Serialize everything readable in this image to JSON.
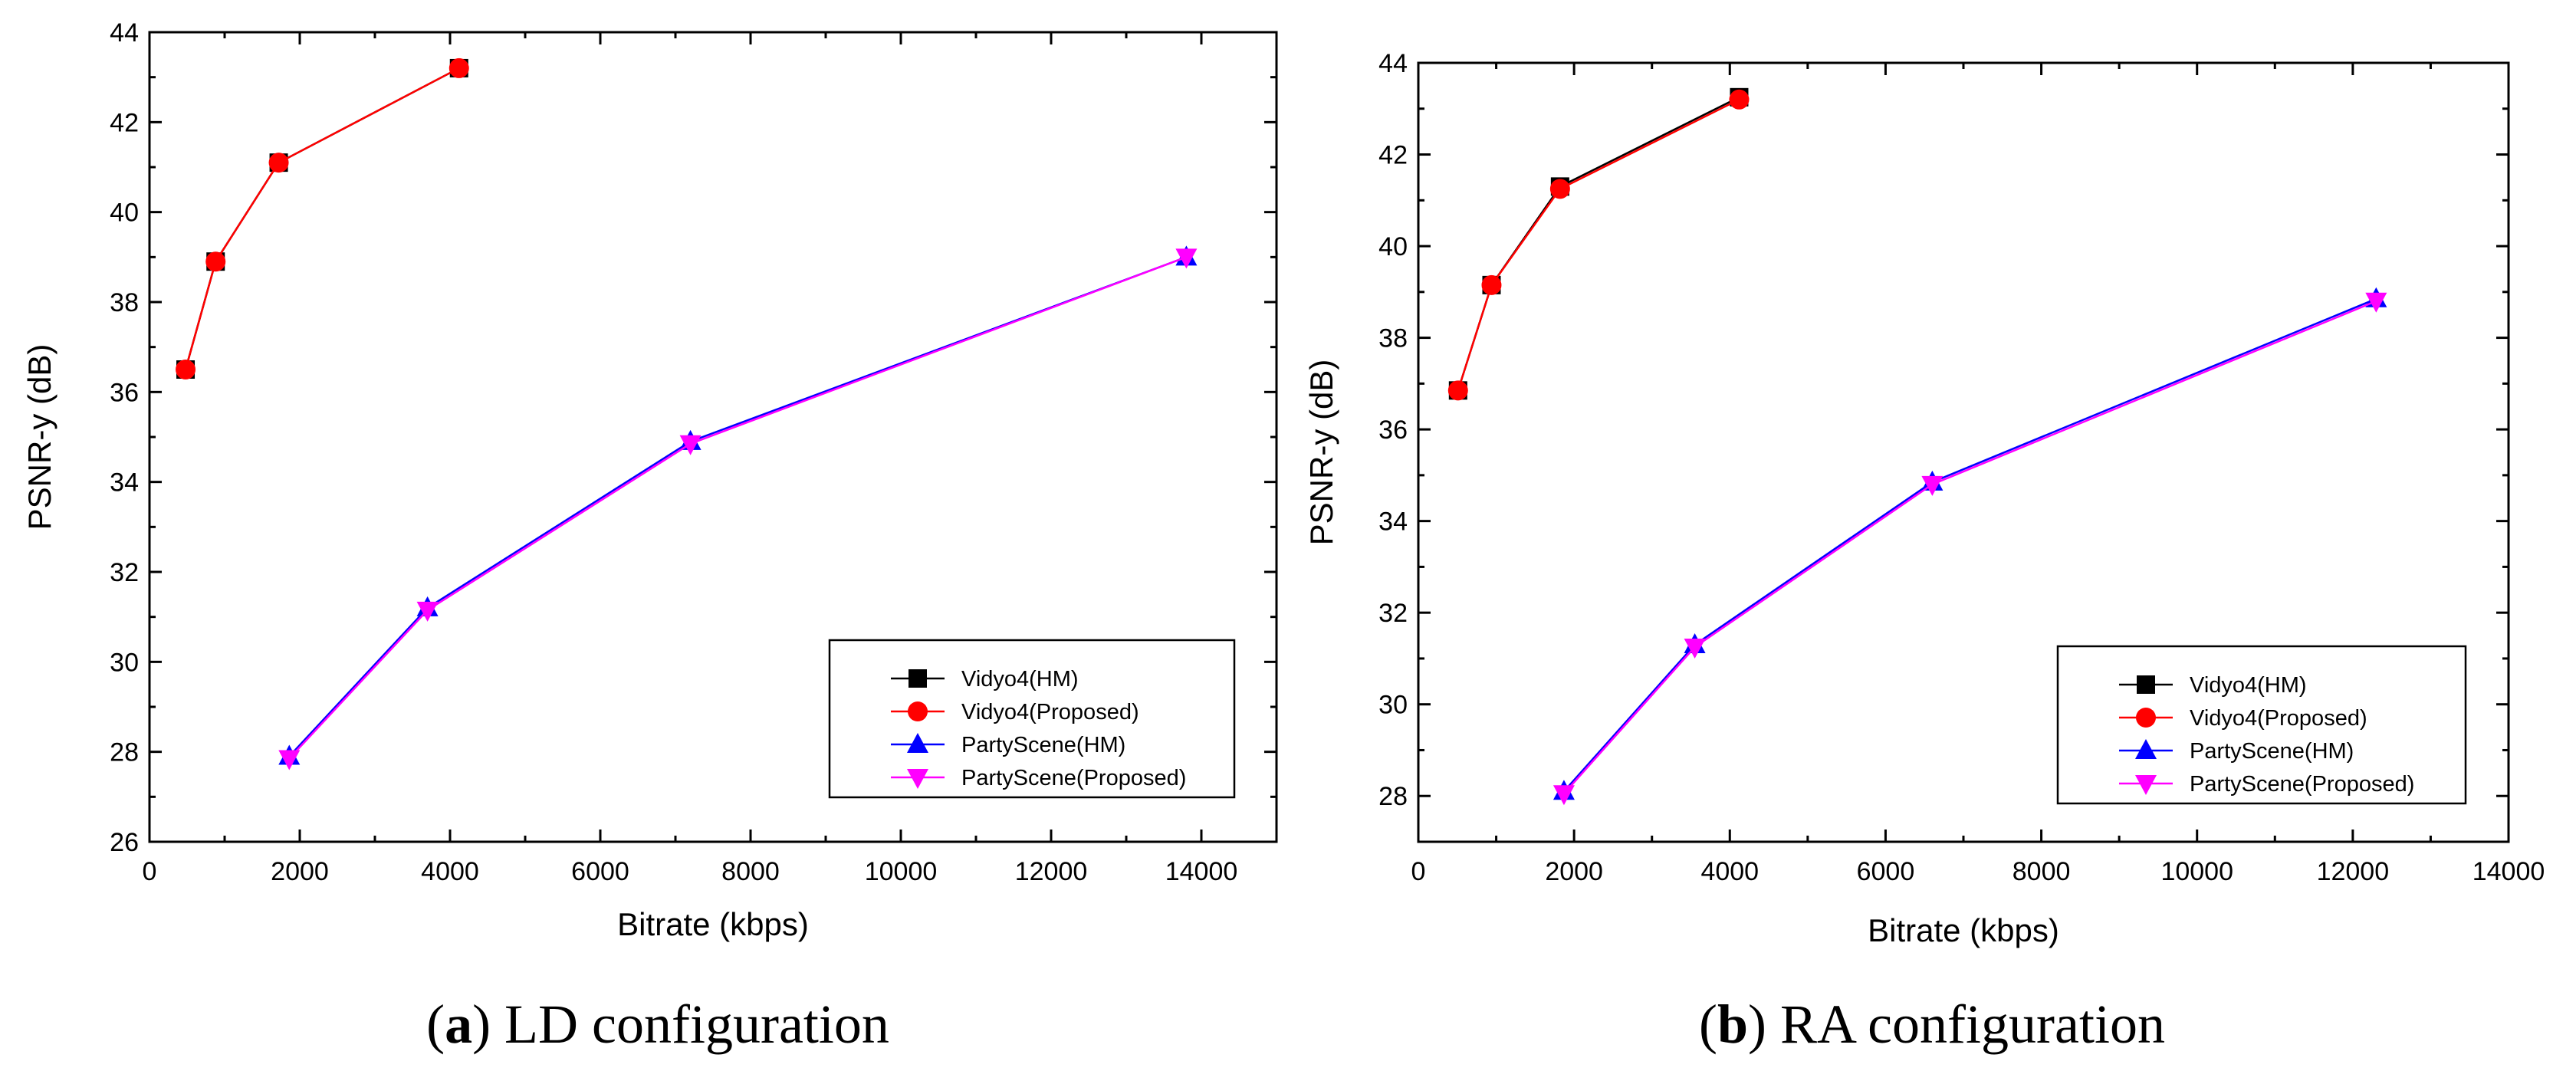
{
  "chart_data": [
    {
      "type": "line",
      "caption_letter": "a",
      "caption_text": "LD configuration",
      "xlabel": "Bitrate (kbps)",
      "ylabel": "PSNR-y (dB)",
      "xlim": [
        0,
        15000
      ],
      "ylim": [
        26,
        44
      ],
      "xticks": [
        0,
        2000,
        4000,
        6000,
        8000,
        10000,
        12000,
        14000
      ],
      "yticks": [
        26,
        28,
        30,
        32,
        34,
        36,
        38,
        40,
        42,
        44
      ],
      "legend_position": "bottom-right",
      "series": [
        {
          "name": "Vidyo4(HM)",
          "color": "#000000",
          "marker": "square",
          "x": [
            480,
            880,
            1720,
            4120
          ],
          "y": [
            36.5,
            38.9,
            41.1,
            43.2
          ]
        },
        {
          "name": "Vidyo4(Proposed)",
          "color": "#ff0000",
          "marker": "circle",
          "x": [
            480,
            880,
            1720,
            4120
          ],
          "y": [
            36.5,
            38.9,
            41.1,
            43.2
          ]
        },
        {
          "name": "PartyScene(HM)",
          "color": "#0000ff",
          "marker": "triangle-up",
          "x": [
            1860,
            3700,
            7200,
            13800
          ],
          "y": [
            27.9,
            31.2,
            34.9,
            39.0
          ]
        },
        {
          "name": "PartyScene(Proposed)",
          "color": "#ff00ff",
          "marker": "triangle-down",
          "x": [
            1860,
            3700,
            7200,
            13800
          ],
          "y": [
            27.85,
            31.15,
            34.85,
            39.0
          ]
        }
      ]
    },
    {
      "type": "line",
      "caption_letter": "b",
      "caption_text": "RA configuration",
      "xlabel": "Bitrate (kbps)",
      "ylabel": "PSNR-y (dB)",
      "xlim": [
        0,
        14000
      ],
      "ylim": [
        27,
        44
      ],
      "xticks": [
        0,
        2000,
        4000,
        6000,
        8000,
        10000,
        12000,
        14000
      ],
      "yticks": [
        28,
        30,
        32,
        34,
        36,
        38,
        40,
        42,
        44
      ],
      "legend_position": "bottom-right",
      "series": [
        {
          "name": "Vidyo4(HM)",
          "color": "#000000",
          "marker": "square",
          "x": [
            510,
            940,
            1820,
            4120
          ],
          "y": [
            36.85,
            39.15,
            41.3,
            43.25
          ]
        },
        {
          "name": "Vidyo4(Proposed)",
          "color": "#ff0000",
          "marker": "circle",
          "x": [
            510,
            940,
            1820,
            4120
          ],
          "y": [
            36.85,
            39.15,
            41.25,
            43.2
          ]
        },
        {
          "name": "PartyScene(HM)",
          "color": "#0000ff",
          "marker": "triangle-up",
          "x": [
            1870,
            3550,
            6600,
            12300
          ],
          "y": [
            28.1,
            31.3,
            34.85,
            38.85
          ]
        },
        {
          "name": "PartyScene(Proposed)",
          "color": "#ff00ff",
          "marker": "triangle-down",
          "x": [
            1870,
            3550,
            6600,
            12300
          ],
          "y": [
            28.05,
            31.25,
            34.8,
            38.8
          ]
        }
      ]
    }
  ]
}
